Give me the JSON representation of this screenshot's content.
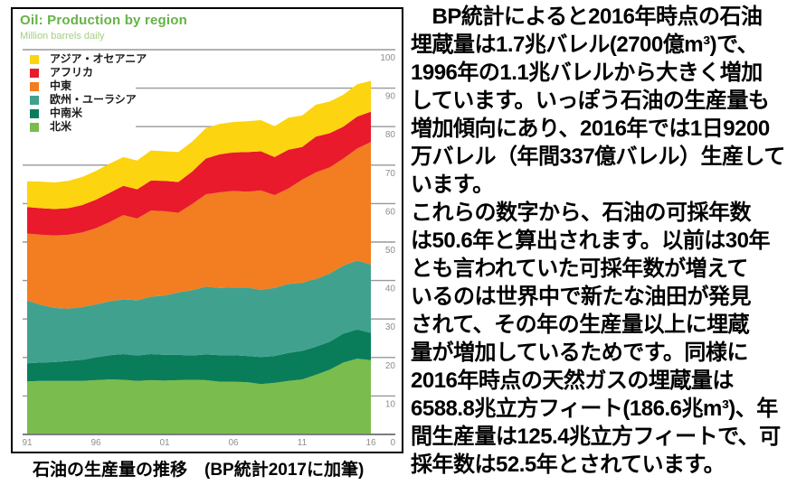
{
  "panel": {
    "title": "Oil: Production by region",
    "subtitle": "Million barrels daily",
    "caption": "石油の生産量の推移　(BP統計2017に加筆)"
  },
  "chart_data": {
    "type": "area",
    "stacked": true,
    "title": "Oil: Production by region",
    "ylabel": "Million barrels daily",
    "ylim": [
      0,
      100
    ],
    "grid": true,
    "legend_position": "top-left",
    "grid_color": "#95989A",
    "axis_color": "#7B7E81",
    "tick_label_color": "#8A8E91",
    "x": [
      1991,
      1992,
      1993,
      1994,
      1995,
      1996,
      1997,
      1998,
      1999,
      2000,
      2001,
      2002,
      2003,
      2004,
      2005,
      2006,
      2007,
      2008,
      2009,
      2010,
      2011,
      2012,
      2013,
      2014,
      2015,
      2016
    ],
    "x_tick_years": [
      1991,
      1996,
      2001,
      2006,
      2011,
      2016
    ],
    "x_tick_labels": [
      "91",
      "96",
      "01",
      "06",
      "11",
      "16"
    ],
    "y_ticks": [
      100,
      90,
      80,
      70,
      60,
      50,
      40,
      30,
      20,
      10,
      0
    ],
    "series": [
      {
        "id": "north-america",
        "name": "北米",
        "color": "#7ABC4D",
        "values": [
          13.8,
          13.9,
          13.9,
          13.9,
          13.9,
          14.1,
          14.3,
          14.2,
          13.9,
          14.1,
          14.0,
          14.1,
          14.2,
          14.1,
          13.7,
          13.7,
          13.6,
          13.1,
          13.4,
          13.9,
          14.3,
          15.5,
          16.8,
          18.7,
          19.7,
          19.3
        ]
      },
      {
        "id": "central-south-america",
        "name": "中南米",
        "color": "#097D59",
        "values": [
          4.7,
          4.8,
          4.9,
          5.2,
          5.5,
          5.9,
          6.3,
          6.7,
          6.6,
          6.8,
          6.7,
          6.6,
          6.3,
          6.7,
          6.9,
          6.9,
          6.8,
          7.0,
          7.0,
          7.3,
          7.4,
          7.3,
          7.3,
          7.5,
          7.6,
          7.1
        ]
      },
      {
        "id": "europe-eurasia",
        "name": "欧州・ユーラシア",
        "color": "#41A18F",
        "values": [
          16.3,
          15.0,
          14.1,
          13.6,
          13.7,
          13.8,
          14.0,
          14.2,
          14.4,
          14.9,
          15.4,
          16.2,
          17.0,
          17.6,
          17.5,
          17.6,
          17.8,
          17.5,
          17.7,
          17.9,
          17.7,
          17.6,
          17.7,
          17.7,
          17.9,
          17.8
        ]
      },
      {
        "id": "middle-east",
        "name": "中東",
        "color": "#F37D21",
        "values": [
          17.4,
          18.2,
          18.8,
          19.2,
          19.4,
          19.8,
          20.6,
          21.9,
          21.2,
          22.4,
          21.9,
          20.7,
          22.4,
          24.0,
          24.8,
          25.1,
          24.9,
          25.8,
          24.1,
          24.8,
          26.8,
          27.7,
          27.6,
          27.8,
          29.1,
          31.8
        ]
      },
      {
        "id": "africa",
        "name": "アフリカ",
        "color": "#E81A2C",
        "values": [
          6.9,
          6.9,
          6.9,
          6.9,
          7.1,
          7.4,
          7.6,
          7.6,
          7.6,
          7.8,
          7.9,
          8.0,
          8.4,
          9.3,
          9.9,
          10.0,
          10.3,
          10.2,
          9.9,
          10.1,
          8.5,
          9.3,
          8.9,
          8.3,
          8.3,
          7.9
        ]
      },
      {
        "id": "asia-oceania",
        "name": "アジア・オセアニア",
        "color": "#FCD40F",
        "values": [
          6.7,
          6.9,
          6.9,
          7.1,
          7.3,
          7.5,
          7.6,
          7.5,
          7.5,
          7.8,
          7.7,
          7.8,
          7.8,
          7.9,
          7.9,
          7.9,
          8.0,
          8.1,
          8.0,
          8.3,
          8.2,
          8.3,
          8.2,
          8.3,
          8.4,
          8.0
        ]
      }
    ],
    "legend": [
      {
        "label": "アジア・オセアニア",
        "color": "#FCD40F"
      },
      {
        "label": "アフリカ",
        "color": "#E81A2C"
      },
      {
        "label": "中東",
        "color": "#F37D21"
      },
      {
        "label": "欧州・ユーラシア",
        "color": "#41A18F"
      },
      {
        "label": "中南米",
        "color": "#097D59"
      },
      {
        "label": "北米",
        "color": "#7ABC4D"
      }
    ]
  },
  "article": {
    "lines": [
      "　BP統計によると2016年時点の石油",
      "埋蔵量は1.7兆バレル(2700億m³)で、",
      "1996年の1.1兆バレルから大きく増加",
      "しています。いっぽう石油の生産量も",
      "増加傾向にあり、2016年では1日9200",
      "万バレル（年間337億バレル）生産して",
      "います。",
      "これらの数字から、石油の可採年数",
      "は50.6年と算出されます。以前は30年",
      "とも言われていた可採年数が増えて",
      "いるのは世界中で新たな油田が発見",
      "されて、その年の生産量以上に埋蔵",
      "量が増加しているためです。同様に",
      "2016年時点の天然ガスの埋蔵量は",
      "6588.8兆立方フィート(186.6兆m³)、年",
      "間生産量は125.4兆立方フィートで、可",
      "採年数は52.5年とされています。"
    ]
  }
}
